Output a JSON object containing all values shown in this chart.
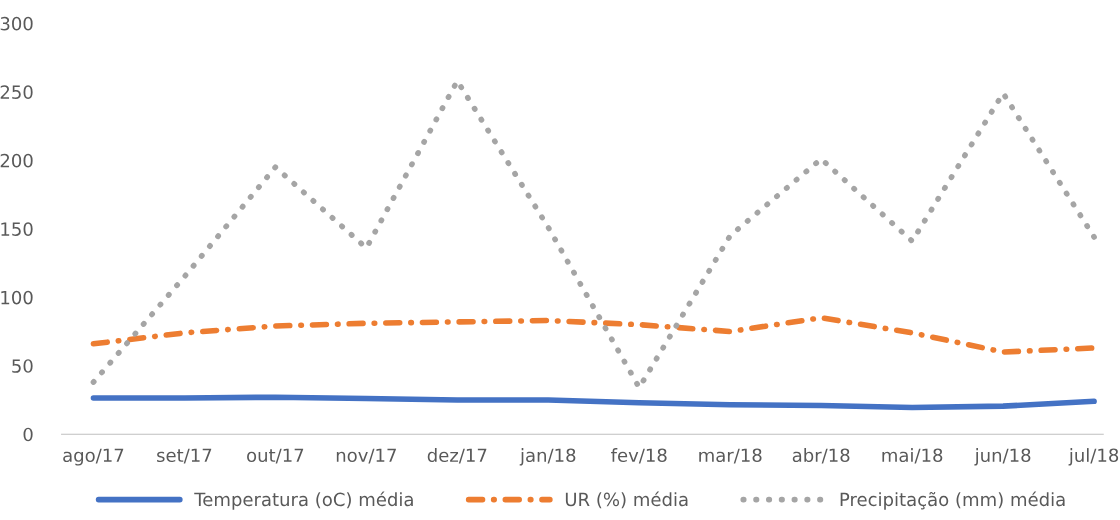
{
  "chart_data": {
    "type": "line",
    "categories": [
      "ago/17",
      "set/17",
      "out/17",
      "nov/17",
      "dez/17",
      "jan/18",
      "fev/18",
      "mar/18",
      "abr/18",
      "mai/18",
      "jun/18",
      "jul/18"
    ],
    "series": [
      {
        "name": "Temperatura (oC) média",
        "color": "#4472c4",
        "line_style": "solid",
        "values": [
          26.5,
          26.5,
          27,
          26,
          25,
          25,
          23,
          21.5,
          21,
          19.5,
          20.5,
          24
        ]
      },
      {
        "name": "UR (%) média",
        "color": "#ed7d31",
        "line_style": "dashdot",
        "values": [
          66,
          74,
          79,
          81,
          82,
          83,
          80,
          75,
          85,
          74,
          60,
          63
        ]
      },
      {
        "name": "Precipitação (mm) média",
        "color": "#a5a5a5",
        "line_style": "dotted",
        "values": [
          38,
          115,
          195,
          136,
          258,
          151,
          34,
          145,
          201,
          141,
          249,
          144
        ]
      }
    ],
    "ylim": [
      0,
      300
    ],
    "yticks": [
      0,
      50,
      100,
      150,
      200,
      250,
      300
    ],
    "grid": false,
    "legend": "bottom",
    "marker": "none"
  }
}
